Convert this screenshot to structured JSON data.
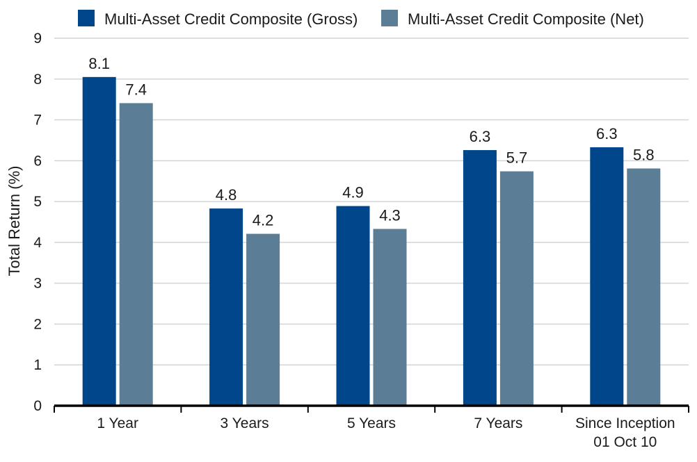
{
  "chart_data": {
    "type": "bar",
    "title": "",
    "ylabel": "Total Return (%)",
    "xlabel": "",
    "ylim": [
      0,
      9
    ],
    "yticks": [
      0,
      1,
      2,
      3,
      4,
      5,
      6,
      7,
      8,
      9
    ],
    "grid": true,
    "legend_position": "top",
    "categories": [
      [
        "1 Year"
      ],
      [
        "3 Years"
      ],
      [
        "5 Years"
      ],
      [
        "7 Years"
      ],
      [
        "Since Inception",
        "01 Oct 10"
      ]
    ],
    "series": [
      {
        "name": "Multi-Asset Credit Composite (Gross)",
        "color": "#00468b",
        "values": [
          8.05,
          4.83,
          4.89,
          6.26,
          6.33
        ],
        "labels": [
          "8.1",
          "4.8",
          "4.9",
          "6.3",
          "6.3"
        ]
      },
      {
        "name": "Multi-Asset Credit Composite (Net)",
        "color": "#5b7d96",
        "values": [
          7.41,
          4.21,
          4.33,
          5.74,
          5.81
        ],
        "labels": [
          "7.4",
          "4.2",
          "4.3",
          "5.7",
          "5.8"
        ]
      }
    ]
  }
}
